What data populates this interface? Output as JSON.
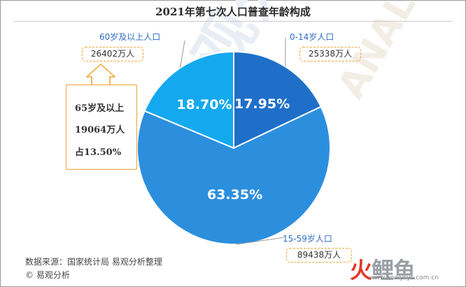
{
  "title": "2021年第七次人口普查年龄构成",
  "watermark": {
    "brand_cn": "易观分析",
    "brand_en": "ANALYSYS"
  },
  "chart_data": {
    "type": "pie",
    "title": "2021年第七次人口普查年龄构成",
    "slices": [
      {
        "label": "0-14岁人口",
        "value_text": "25338万人",
        "value": 25338,
        "percent": 17.95,
        "percent_label": "17.95%",
        "color": "#1f6fc8"
      },
      {
        "label": "15-59岁人口",
        "value_text": "89438万人",
        "value": 89438,
        "percent": 63.35,
        "percent_label": "63.35%",
        "color": "#2b8fde"
      },
      {
        "label": "60岁及以上人口",
        "value_text": "26402万人",
        "value": 26402,
        "percent": 18.7,
        "percent_label": "18.70%",
        "color": "#14a9ee"
      }
    ],
    "start_angle_deg": 0,
    "direction": "clockwise"
  },
  "callout": {
    "line1": "65岁及以上",
    "line2": "19064万人",
    "line3": "占13.50%"
  },
  "footer": {
    "source": "数据来源：国家统计局 易观分析整理",
    "copyright": "© 易观分析"
  },
  "logo": {
    "fire": "火",
    "rest": "鲤鱼",
    "url": "www.analysys.com.cn"
  },
  "colors": {
    "accent_orange": "#f0a032",
    "label_blue": "#2c6cc4"
  }
}
